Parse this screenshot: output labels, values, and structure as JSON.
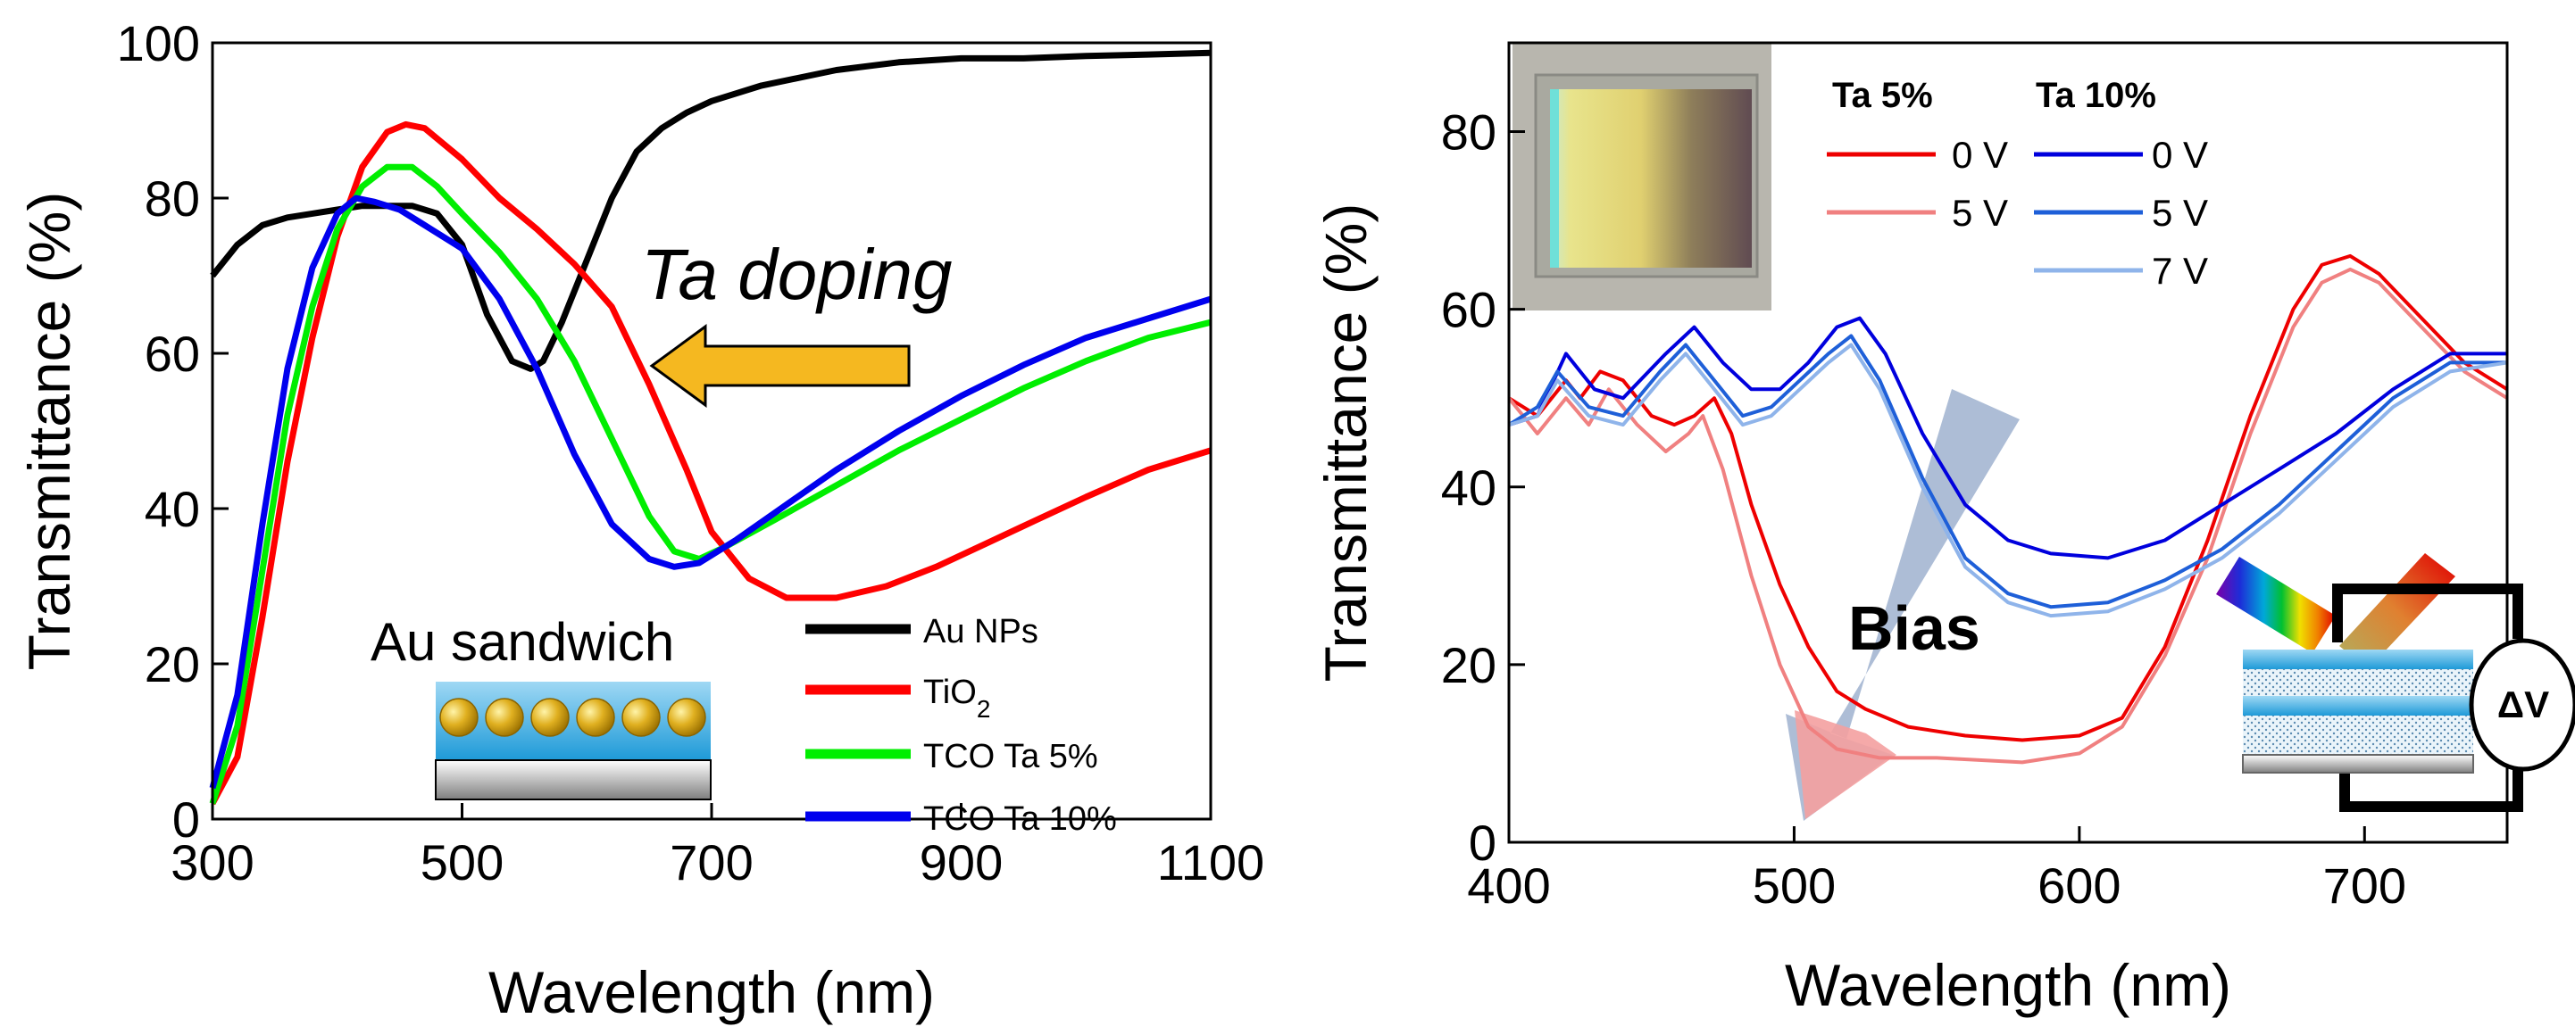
{
  "chart_data": [
    {
      "type": "line",
      "xlabel": "Wavelength (nm)",
      "ylabel": "Transmittance (%)",
      "xlim": [
        300,
        1100
      ],
      "ylim": [
        0,
        100
      ],
      "xticks": [
        "300",
        "500",
        "700",
        "900",
        "1100"
      ],
      "yticks": [
        "0",
        "20",
        "40",
        "60",
        "80",
        "100"
      ],
      "grid": false,
      "legend_position": "bottom-right",
      "annotations": {
        "arrow_label": "Ta doping",
        "inset_label": "Au sandwich"
      },
      "series": [
        {
          "name": "Au NPs",
          "color": "#000000",
          "points": [
            [
              300,
              70
            ],
            [
              320,
              74
            ],
            [
              340,
              76.5
            ],
            [
              360,
              77.5
            ],
            [
              380,
              78
            ],
            [
              400,
              78.5
            ],
            [
              420,
              79
            ],
            [
              440,
              79
            ],
            [
              460,
              79
            ],
            [
              480,
              78
            ],
            [
              500,
              74
            ],
            [
              520,
              65
            ],
            [
              540,
              59
            ],
            [
              555,
              58
            ],
            [
              565,
              59
            ],
            [
              580,
              64
            ],
            [
              600,
              72
            ],
            [
              620,
              80
            ],
            [
              640,
              86
            ],
            [
              660,
              89
            ],
            [
              680,
              91
            ],
            [
              700,
              92.5
            ],
            [
              740,
              94.5
            ],
            [
              800,
              96.5
            ],
            [
              850,
              97.5
            ],
            [
              900,
              98
            ],
            [
              950,
              98
            ],
            [
              1000,
              98.3
            ],
            [
              1050,
              98.5
            ],
            [
              1100,
              98.7
            ]
          ]
        },
        {
          "name": "TiO2",
          "color": "#ff0000",
          "points": [
            [
              300,
              2
            ],
            [
              320,
              8
            ],
            [
              340,
              26
            ],
            [
              360,
              46
            ],
            [
              380,
              62
            ],
            [
              400,
              75
            ],
            [
              420,
              84
            ],
            [
              440,
              88.5
            ],
            [
              455,
              89.5
            ],
            [
              470,
              89
            ],
            [
              500,
              85
            ],
            [
              530,
              80
            ],
            [
              560,
              76
            ],
            [
              590,
              71.5
            ],
            [
              620,
              66
            ],
            [
              650,
              56
            ],
            [
              680,
              45
            ],
            [
              700,
              37
            ],
            [
              730,
              31
            ],
            [
              760,
              28.5
            ],
            [
              800,
              28.5
            ],
            [
              840,
              30
            ],
            [
              880,
              32.5
            ],
            [
              920,
              35.5
            ],
            [
              960,
              38.5
            ],
            [
              1000,
              41.5
            ],
            [
              1050,
              45
            ],
            [
              1100,
              47.5
            ]
          ]
        },
        {
          "name": "TCO Ta 5%",
          "color": "#00ee00",
          "points": [
            [
              300,
              2
            ],
            [
              320,
              12
            ],
            [
              340,
              32
            ],
            [
              360,
              52
            ],
            [
              380,
              66
            ],
            [
              400,
              76
            ],
            [
              420,
              81.5
            ],
            [
              440,
              84
            ],
            [
              460,
              84
            ],
            [
              480,
              81.5
            ],
            [
              500,
              78
            ],
            [
              530,
              73
            ],
            [
              560,
              67
            ],
            [
              590,
              59
            ],
            [
              620,
              49
            ],
            [
              650,
              39
            ],
            [
              670,
              34.5
            ],
            [
              690,
              33.5
            ],
            [
              710,
              35
            ],
            [
              750,
              38.5
            ],
            [
              800,
              43
            ],
            [
              850,
              47.5
            ],
            [
              900,
              51.5
            ],
            [
              950,
              55.5
            ],
            [
              1000,
              59
            ],
            [
              1050,
              62
            ],
            [
              1100,
              64
            ]
          ]
        },
        {
          "name": "TCO Ta 10%",
          "color": "#0000ee",
          "points": [
            [
              300,
              4
            ],
            [
              320,
              16
            ],
            [
              340,
              38
            ],
            [
              360,
              58
            ],
            [
              380,
              71
            ],
            [
              400,
              78
            ],
            [
              415,
              80
            ],
            [
              430,
              79.5
            ],
            [
              450,
              78.5
            ],
            [
              470,
              76.5
            ],
            [
              500,
              73.5
            ],
            [
              530,
              67
            ],
            [
              560,
              58
            ],
            [
              590,
              47
            ],
            [
              620,
              38
            ],
            [
              650,
              33.5
            ],
            [
              670,
              32.5
            ],
            [
              690,
              33
            ],
            [
              720,
              36
            ],
            [
              760,
              40.5
            ],
            [
              800,
              45
            ],
            [
              850,
              50
            ],
            [
              900,
              54.5
            ],
            [
              950,
              58.5
            ],
            [
              1000,
              62
            ],
            [
              1050,
              64.5
            ],
            [
              1100,
              67
            ]
          ]
        }
      ]
    },
    {
      "type": "line",
      "xlabel": "Wavelength (nm)",
      "ylabel": "Transmittance (%)",
      "xlim": [
        400,
        750
      ],
      "ylim": [
        0,
        90
      ],
      "xticks": [
        "400",
        "500",
        "600",
        "700"
      ],
      "yticks": [
        "0",
        "20",
        "40",
        "60",
        "80"
      ],
      "grid": false,
      "legend_position": "top-right",
      "legend_headers": [
        "Ta 5%",
        "Ta 10%"
      ],
      "annotations": {
        "arrow_label": "Bias",
        "device_label": "ΔV"
      },
      "series": [
        {
          "name": "0 V",
          "group": "Ta 5%",
          "color": "#ee0000",
          "points": [
            [
              400,
              50
            ],
            [
              410,
              48
            ],
            [
              420,
              52
            ],
            [
              425,
              50
            ],
            [
              432,
              53
            ],
            [
              440,
              52
            ],
            [
              450,
              48
            ],
            [
              458,
              47
            ],
            [
              465,
              48
            ],
            [
              472,
              50
            ],
            [
              478,
              46
            ],
            [
              485,
              38
            ],
            [
              495,
              29
            ],
            [
              505,
              22
            ],
            [
              515,
              17
            ],
            [
              525,
              15
            ],
            [
              540,
              13
            ],
            [
              560,
              12
            ],
            [
              580,
              11.5
            ],
            [
              600,
              12
            ],
            [
              615,
              14
            ],
            [
              630,
              22
            ],
            [
              645,
              34
            ],
            [
              660,
              48
            ],
            [
              675,
              60
            ],
            [
              685,
              65
            ],
            [
              695,
              66
            ],
            [
              705,
              64
            ],
            [
              720,
              59
            ],
            [
              735,
              54
            ],
            [
              750,
              51
            ]
          ]
        },
        {
          "name": "5 V",
          "group": "Ta 5%",
          "color": "#f08080",
          "points": [
            [
              400,
              50
            ],
            [
              410,
              46
            ],
            [
              420,
              50
            ],
            [
              428,
              47
            ],
            [
              435,
              51
            ],
            [
              445,
              47
            ],
            [
              455,
              44
            ],
            [
              463,
              46
            ],
            [
              468,
              48
            ],
            [
              475,
              42
            ],
            [
              485,
              30
            ],
            [
              495,
              20
            ],
            [
              505,
              13
            ],
            [
              515,
              10.5
            ],
            [
              530,
              9.5
            ],
            [
              550,
              9.5
            ],
            [
              580,
              9
            ],
            [
              600,
              10
            ],
            [
              615,
              13
            ],
            [
              630,
              21
            ],
            [
              645,
              32
            ],
            [
              660,
              46
            ],
            [
              675,
              58
            ],
            [
              685,
              63
            ],
            [
              695,
              64.5
            ],
            [
              705,
              63
            ],
            [
              720,
              58
            ],
            [
              735,
              53
            ],
            [
              750,
              50
            ]
          ]
        },
        {
          "name": "0 V",
          "group": "Ta 10%",
          "color": "#0000dd",
          "points": [
            [
              400,
              47
            ],
            [
              410,
              48
            ],
            [
              420,
              55
            ],
            [
              430,
              51
            ],
            [
              440,
              50
            ],
            [
              455,
              55
            ],
            [
              465,
              58
            ],
            [
              475,
              54
            ],
            [
              485,
              51
            ],
            [
              495,
              51
            ],
            [
              505,
              54
            ],
            [
              515,
              58
            ],
            [
              523,
              59
            ],
            [
              532,
              55
            ],
            [
              545,
              46
            ],
            [
              560,
              38
            ],
            [
              575,
              34
            ],
            [
              590,
              32.5
            ],
            [
              610,
              32
            ],
            [
              630,
              34
            ],
            [
              650,
              38
            ],
            [
              670,
              42
            ],
            [
              690,
              46
            ],
            [
              710,
              51
            ],
            [
              730,
              55
            ],
            [
              750,
              55
            ]
          ]
        },
        {
          "name": "5 V",
          "group": "Ta 10%",
          "color": "#1e5fd8",
          "points": [
            [
              400,
              47
            ],
            [
              410,
              49
            ],
            [
              417,
              53
            ],
            [
              428,
              49
            ],
            [
              440,
              48
            ],
            [
              453,
              53
            ],
            [
              462,
              56
            ],
            [
              472,
              52
            ],
            [
              482,
              48
            ],
            [
              492,
              49
            ],
            [
              502,
              52
            ],
            [
              512,
              55
            ],
            [
              520,
              57
            ],
            [
              530,
              52
            ],
            [
              545,
              41
            ],
            [
              560,
              32
            ],
            [
              575,
              28
            ],
            [
              590,
              26.5
            ],
            [
              610,
              27
            ],
            [
              630,
              29.5
            ],
            [
              650,
              33
            ],
            [
              670,
              38
            ],
            [
              690,
              44
            ],
            [
              710,
              50
            ],
            [
              730,
              54
            ],
            [
              750,
              54
            ]
          ]
        },
        {
          "name": "7 V",
          "group": "Ta 10%",
          "color": "#8fb4ea",
          "points": [
            [
              400,
              47
            ],
            [
              410,
              48
            ],
            [
              417,
              52
            ],
            [
              428,
              48
            ],
            [
              440,
              47
            ],
            [
              453,
              52
            ],
            [
              462,
              55
            ],
            [
              472,
              51
            ],
            [
              482,
              47
            ],
            [
              492,
              48
            ],
            [
              502,
              51
            ],
            [
              512,
              54
            ],
            [
              520,
              56
            ],
            [
              530,
              51
            ],
            [
              545,
              40
            ],
            [
              560,
              31
            ],
            [
              575,
              27
            ],
            [
              590,
              25.5
            ],
            [
              610,
              26
            ],
            [
              630,
              28.5
            ],
            [
              650,
              32
            ],
            [
              670,
              37
            ],
            [
              690,
              43
            ],
            [
              710,
              49
            ],
            [
              730,
              53
            ],
            [
              750,
              54
            ]
          ]
        }
      ]
    }
  ]
}
